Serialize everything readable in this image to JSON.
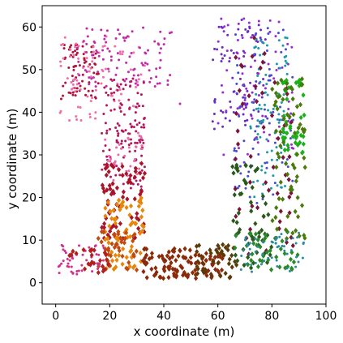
{
  "chart_data": {
    "type": "scatter",
    "title": "",
    "xlabel": "x coordinate (m)",
    "ylabel": "y coordinate (m)",
    "xlim": [
      -5,
      100
    ],
    "ylim": [
      -5,
      65
    ],
    "xticks": [
      0,
      20,
      40,
      60,
      80,
      100
    ],
    "yticks": [
      0,
      10,
      20,
      30,
      40,
      50,
      60
    ],
    "grid": false,
    "legend": "none",
    "marker_styles": {
      "circle": "small dots (left arm, top-left blob, right side)",
      "diamond": "larger diamonds (bottom corridor and right column)"
    },
    "series": [
      {
        "id": "s-topleft-darkred",
        "color": "#b0143c",
        "marker": "circle",
        "x_range": [
          2,
          16
        ],
        "y_range": [
          42,
          56
        ],
        "count": 70
      },
      {
        "id": "s-topleft-pink",
        "color": "#f06fa8",
        "marker": "circle",
        "x_range": [
          1,
          33
        ],
        "y_range": [
          38,
          58
        ],
        "count": 90
      },
      {
        "id": "s-top-magenta",
        "color": "#c02ca8",
        "marker": "circle",
        "x_range": [
          8,
          43
        ],
        "y_range": [
          46,
          60
        ],
        "count": 100
      },
      {
        "id": "s-leftarm-crimson",
        "color": "#b4165e",
        "marker": "circle",
        "x_range": [
          17,
          33
        ],
        "y_range": [
          22,
          48
        ],
        "count": 120
      },
      {
        "id": "s-leftarm-pink",
        "color": "#e86aa8",
        "marker": "circle",
        "x_range": [
          18,
          32
        ],
        "y_range": [
          24,
          36
        ],
        "count": 40
      },
      {
        "id": "s-stem-red",
        "color": "#a8142a",
        "marker": "diamond",
        "x_range": [
          17,
          33
        ],
        "y_range": [
          10,
          28
        ],
        "count": 75
      },
      {
        "id": "s-stem-orange",
        "color": "#e8860a",
        "marker": "diamond",
        "x_range": [
          18,
          33
        ],
        "y_range": [
          3,
          20
        ],
        "count": 70
      },
      {
        "id": "s-stem-rust",
        "color": "#c04a10",
        "marker": "diamond",
        "x_range": [
          15,
          30
        ],
        "y_range": [
          3,
          12
        ],
        "count": 45
      },
      {
        "id": "s-bottomleft-pink",
        "color": "#d0308a",
        "marker": "circle",
        "x_range": [
          1,
          18
        ],
        "y_range": [
          2,
          9
        ],
        "count": 50
      },
      {
        "id": "s-bottomleft-red",
        "color": "#b02020",
        "marker": "diamond",
        "x_range": [
          5,
          20
        ],
        "y_range": [
          2,
          8
        ],
        "count": 25
      },
      {
        "id": "s-corridor-brown",
        "color": "#8a2a08",
        "marker": "diamond",
        "x_range": [
          32,
          62
        ],
        "y_range": [
          1,
          8
        ],
        "count": 110
      },
      {
        "id": "s-corridor-olive",
        "color": "#5a3a08",
        "marker": "diamond",
        "x_range": [
          52,
          68
        ],
        "y_range": [
          1,
          9
        ],
        "count": 40
      },
      {
        "id": "s-right-purple",
        "color": "#6a2cc0",
        "marker": "circle",
        "x_range": [
          58,
          78
        ],
        "y_range": [
          36,
          62
        ],
        "count": 80
      },
      {
        "id": "s-right-violet",
        "color": "#9a2ad0",
        "marker": "circle",
        "x_range": [
          60,
          88
        ],
        "y_range": [
          30,
          62
        ],
        "count": 80
      },
      {
        "id": "s-right-blue",
        "color": "#4a4ad0",
        "marker": "circle",
        "x_range": [
          66,
          88
        ],
        "y_range": [
          18,
          60
        ],
        "count": 80
      },
      {
        "id": "s-right-teal",
        "color": "#1a9aa8",
        "marker": "circle",
        "x_range": [
          72,
          86
        ],
        "y_range": [
          20,
          58
        ],
        "count": 90
      },
      {
        "id": "s-right-darkred",
        "color": "#7a1438",
        "marker": "diamond",
        "x_range": [
          66,
          88
        ],
        "y_range": [
          6,
          58
        ],
        "count": 55
      },
      {
        "id": "s-rightcol-green",
        "color": "#1ab01a",
        "marker": "diamond",
        "x_range": [
          84,
          92
        ],
        "y_range": [
          30,
          48
        ],
        "count": 45
      },
      {
        "id": "s-rightcol-olive",
        "color": "#4a7a0a",
        "marker": "diamond",
        "x_range": [
          80,
          93
        ],
        "y_range": [
          10,
          48
        ],
        "count": 70
      },
      {
        "id": "s-right-darkgreen",
        "color": "#2a5a1a",
        "marker": "diamond",
        "x_range": [
          65,
          80
        ],
        "y_range": [
          3,
          28
        ],
        "count": 55
      },
      {
        "id": "s-bottomright-green",
        "color": "#2a8a2a",
        "marker": "diamond",
        "x_range": [
          66,
          90
        ],
        "y_range": [
          3,
          12
        ],
        "count": 40
      },
      {
        "id": "s-bottomright-teal",
        "color": "#2a8aa0",
        "marker": "circle",
        "x_range": [
          68,
          92
        ],
        "y_range": [
          2,
          12
        ],
        "count": 55
      },
      {
        "id": "s-single",
        "color": "#c02ca8",
        "marker": "circle",
        "x_range": [
          45,
          48
        ],
        "y_range": [
          40,
          42
        ],
        "count": 1
      }
    ]
  }
}
